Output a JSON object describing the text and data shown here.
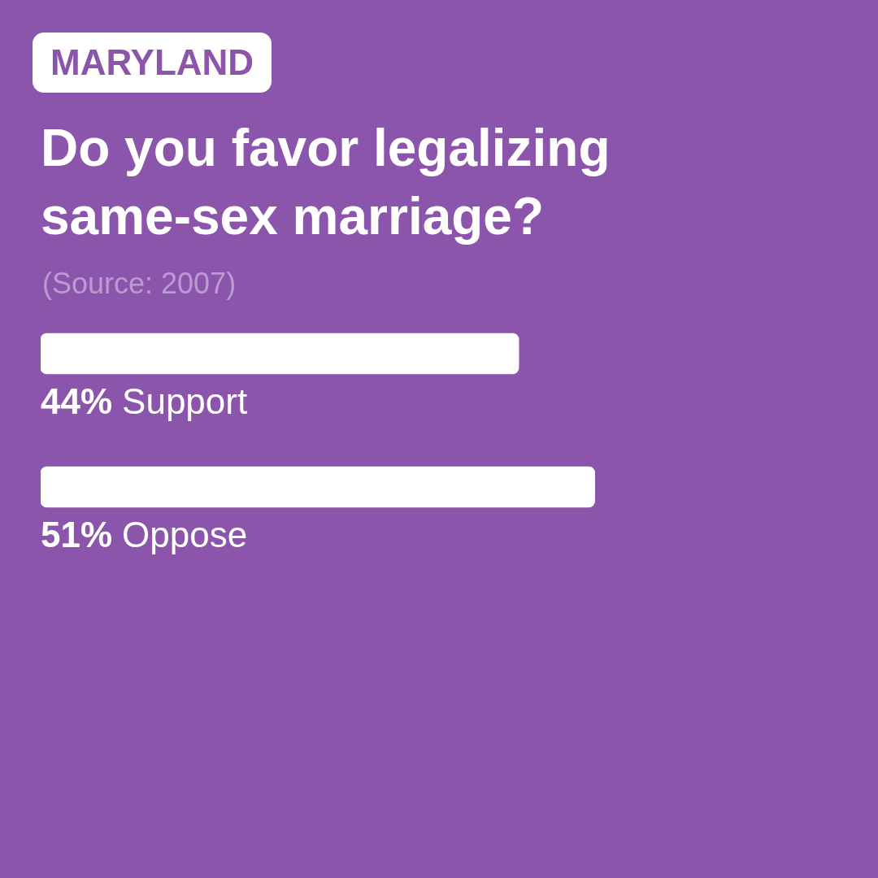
{
  "chart_data": {
    "type": "bar",
    "orientation": "horizontal",
    "subtitle": "MARYLAND",
    "title": "Do you favor legalizing same-sex marriage?",
    "annotations": [
      "(Source: 2007)"
    ],
    "categories": [
      "Support",
      "Oppose"
    ],
    "values": [
      44,
      51
    ],
    "value_labels": [
      "44%",
      "51%"
    ],
    "color": "#ffffff",
    "tick_labels": false
  }
}
